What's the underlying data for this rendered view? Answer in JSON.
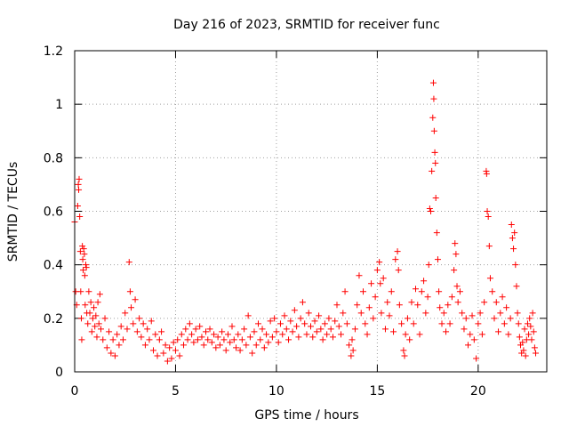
{
  "chart_data": {
    "type": "scatter",
    "title": "Day 216 of 2023, SRMTID for receiver func",
    "xlabel": "GPS time / hours",
    "ylabel": "SRMTID / TECUs",
    "xlim": [
      0,
      23.4
    ],
    "ylim": [
      0,
      1.2
    ],
    "x_ticks": [
      0,
      5,
      10,
      15,
      20
    ],
    "x_tick_labels": [
      "0",
      "5",
      "10",
      "15",
      "20"
    ],
    "y_ticks": [
      0,
      0.2,
      0.4,
      0.6,
      0.8,
      1.0,
      1.2
    ],
    "y_tick_labels": [
      "0",
      "0.2",
      "0.4",
      "0.6",
      "0.8",
      "1",
      "1.2"
    ],
    "grid": true,
    "marker": "+",
    "color": "#ff0000",
    "series": [
      {
        "name": "SRMTID",
        "points": [
          [
            0.0,
            0.56
          ],
          [
            0.05,
            0.3
          ],
          [
            0.1,
            0.25
          ],
          [
            0.15,
            0.62
          ],
          [
            0.18,
            0.7
          ],
          [
            0.2,
            0.68
          ],
          [
            0.22,
            0.72
          ],
          [
            0.25,
            0.58
          ],
          [
            0.28,
            0.45
          ],
          [
            0.3,
            0.3
          ],
          [
            0.33,
            0.2
          ],
          [
            0.35,
            0.12
          ],
          [
            0.38,
            0.47
          ],
          [
            0.4,
            0.42
          ],
          [
            0.42,
            0.38
          ],
          [
            0.45,
            0.46
          ],
          [
            0.48,
            0.44
          ],
          [
            0.5,
            0.36
          ],
          [
            0.52,
            0.25
          ],
          [
            0.55,
            0.4
          ],
          [
            0.58,
            0.39
          ],
          [
            0.6,
            0.22
          ],
          [
            0.65,
            0.18
          ],
          [
            0.7,
            0.3
          ],
          [
            0.75,
            0.22
          ],
          [
            0.8,
            0.26
          ],
          [
            0.85,
            0.15
          ],
          [
            0.9,
            0.2
          ],
          [
            0.95,
            0.24
          ],
          [
            1.0,
            0.17
          ],
          [
            1.05,
            0.21
          ],
          [
            1.1,
            0.13
          ],
          [
            1.15,
            0.26
          ],
          [
            1.2,
            0.18
          ],
          [
            1.25,
            0.29
          ],
          [
            1.3,
            0.16
          ],
          [
            1.4,
            0.12
          ],
          [
            1.5,
            0.2
          ],
          [
            1.6,
            0.09
          ],
          [
            1.7,
            0.15
          ],
          [
            1.8,
            0.07
          ],
          [
            1.9,
            0.12
          ],
          [
            2.0,
            0.06
          ],
          [
            2.1,
            0.14
          ],
          [
            2.2,
            0.1
          ],
          [
            2.3,
            0.17
          ],
          [
            2.4,
            0.12
          ],
          [
            2.5,
            0.22
          ],
          [
            2.6,
            0.16
          ],
          [
            2.7,
            0.41
          ],
          [
            2.75,
            0.3
          ],
          [
            2.8,
            0.24
          ],
          [
            2.9,
            0.18
          ],
          [
            3.0,
            0.27
          ],
          [
            3.1,
            0.15
          ],
          [
            3.2,
            0.2
          ],
          [
            3.3,
            0.13
          ],
          [
            3.4,
            0.18
          ],
          [
            3.5,
            0.1
          ],
          [
            3.6,
            0.16
          ],
          [
            3.7,
            0.12
          ],
          [
            3.8,
            0.19
          ],
          [
            3.9,
            0.08
          ],
          [
            4.0,
            0.14
          ],
          [
            4.1,
            0.06
          ],
          [
            4.2,
            0.12
          ],
          [
            4.3,
            0.15
          ],
          [
            4.4,
            0.07
          ],
          [
            4.5,
            0.1
          ],
          [
            4.6,
            0.04
          ],
          [
            4.7,
            0.09
          ],
          [
            4.8,
            0.05
          ],
          [
            4.9,
            0.11
          ],
          [
            5.0,
            0.08
          ],
          [
            5.1,
            0.12
          ],
          [
            5.2,
            0.06
          ],
          [
            5.3,
            0.14
          ],
          [
            5.4,
            0.1
          ],
          [
            5.5,
            0.16
          ],
          [
            5.6,
            0.12
          ],
          [
            5.7,
            0.18
          ],
          [
            5.8,
            0.14
          ],
          [
            5.9,
            0.11
          ],
          [
            6.0,
            0.16
          ],
          [
            6.1,
            0.12
          ],
          [
            6.2,
            0.17
          ],
          [
            6.3,
            0.13
          ],
          [
            6.4,
            0.1
          ],
          [
            6.5,
            0.15
          ],
          [
            6.6,
            0.12
          ],
          [
            6.7,
            0.16
          ],
          [
            6.8,
            0.11
          ],
          [
            6.9,
            0.14
          ],
          [
            7.0,
            0.09
          ],
          [
            7.1,
            0.13
          ],
          [
            7.2,
            0.1
          ],
          [
            7.3,
            0.15
          ],
          [
            7.4,
            0.12
          ],
          [
            7.5,
            0.08
          ],
          [
            7.6,
            0.14
          ],
          [
            7.7,
            0.11
          ],
          [
            7.8,
            0.17
          ],
          [
            7.9,
            0.12
          ],
          [
            8.0,
            0.09
          ],
          [
            8.1,
            0.14
          ],
          [
            8.2,
            0.08
          ],
          [
            8.3,
            0.12
          ],
          [
            8.4,
            0.16
          ],
          [
            8.5,
            0.1
          ],
          [
            8.6,
            0.21
          ],
          [
            8.7,
            0.13
          ],
          [
            8.8,
            0.07
          ],
          [
            8.9,
            0.15
          ],
          [
            9.0,
            0.1
          ],
          [
            9.1,
            0.18
          ],
          [
            9.2,
            0.12
          ],
          [
            9.3,
            0.16
          ],
          [
            9.4,
            0.09
          ],
          [
            9.5,
            0.14
          ],
          [
            9.6,
            0.11
          ],
          [
            9.7,
            0.19
          ],
          [
            9.8,
            0.13
          ],
          [
            9.9,
            0.2
          ],
          [
            10.0,
            0.15
          ],
          [
            10.1,
            0.11
          ],
          [
            10.2,
            0.18
          ],
          [
            10.3,
            0.14
          ],
          [
            10.4,
            0.21
          ],
          [
            10.5,
            0.16
          ],
          [
            10.6,
            0.12
          ],
          [
            10.7,
            0.19
          ],
          [
            10.8,
            0.15
          ],
          [
            10.9,
            0.23
          ],
          [
            11.0,
            0.17
          ],
          [
            11.1,
            0.13
          ],
          [
            11.2,
            0.2
          ],
          [
            11.3,
            0.26
          ],
          [
            11.4,
            0.18
          ],
          [
            11.5,
            0.14
          ],
          [
            11.6,
            0.22
          ],
          [
            11.7,
            0.17
          ],
          [
            11.8,
            0.13
          ],
          [
            11.9,
            0.19
          ],
          [
            12.0,
            0.15
          ],
          [
            12.1,
            0.21
          ],
          [
            12.2,
            0.16
          ],
          [
            12.3,
            0.12
          ],
          [
            12.4,
            0.18
          ],
          [
            12.5,
            0.14
          ],
          [
            12.6,
            0.2
          ],
          [
            12.7,
            0.16
          ],
          [
            12.8,
            0.13
          ],
          [
            12.9,
            0.19
          ],
          [
            13.0,
            0.25
          ],
          [
            13.1,
            0.17
          ],
          [
            13.2,
            0.14
          ],
          [
            13.3,
            0.22
          ],
          [
            13.4,
            0.3
          ],
          [
            13.5,
            0.18
          ],
          [
            13.6,
            0.1
          ],
          [
            13.7,
            0.06
          ],
          [
            13.75,
            0.12
          ],
          [
            13.8,
            0.08
          ],
          [
            13.9,
            0.16
          ],
          [
            14.0,
            0.25
          ],
          [
            14.1,
            0.36
          ],
          [
            14.2,
            0.22
          ],
          [
            14.3,
            0.3
          ],
          [
            14.4,
            0.18
          ],
          [
            14.5,
            0.14
          ],
          [
            14.6,
            0.24
          ],
          [
            14.7,
            0.33
          ],
          [
            14.8,
            0.2
          ],
          [
            14.9,
            0.28
          ],
          [
            15.0,
            0.38
          ],
          [
            15.1,
            0.41
          ],
          [
            15.15,
            0.33
          ],
          [
            15.2,
            0.22
          ],
          [
            15.3,
            0.35
          ],
          [
            15.4,
            0.16
          ],
          [
            15.5,
            0.26
          ],
          [
            15.6,
            0.21
          ],
          [
            15.7,
            0.3
          ],
          [
            15.8,
            0.15
          ],
          [
            15.9,
            0.42
          ],
          [
            16.0,
            0.45
          ],
          [
            16.05,
            0.38
          ],
          [
            16.1,
            0.25
          ],
          [
            16.2,
            0.18
          ],
          [
            16.3,
            0.08
          ],
          [
            16.35,
            0.06
          ],
          [
            16.4,
            0.14
          ],
          [
            16.5,
            0.2
          ],
          [
            16.6,
            0.12
          ],
          [
            16.7,
            0.26
          ],
          [
            16.8,
            0.18
          ],
          [
            16.9,
            0.31
          ],
          [
            17.0,
            0.25
          ],
          [
            17.1,
            0.14
          ],
          [
            17.2,
            0.3
          ],
          [
            17.3,
            0.34
          ],
          [
            17.4,
            0.22
          ],
          [
            17.5,
            0.28
          ],
          [
            17.55,
            0.4
          ],
          [
            17.6,
            0.61
          ],
          [
            17.65,
            0.6
          ],
          [
            17.7,
            0.75
          ],
          [
            17.75,
            0.95
          ],
          [
            17.78,
            1.08
          ],
          [
            17.8,
            1.02
          ],
          [
            17.82,
            0.9
          ],
          [
            17.85,
            0.82
          ],
          [
            17.88,
            0.78
          ],
          [
            17.9,
            0.65
          ],
          [
            17.95,
            0.52
          ],
          [
            18.0,
            0.42
          ],
          [
            18.05,
            0.3
          ],
          [
            18.1,
            0.24
          ],
          [
            18.2,
            0.18
          ],
          [
            18.3,
            0.22
          ],
          [
            18.4,
            0.15
          ],
          [
            18.5,
            0.25
          ],
          [
            18.6,
            0.18
          ],
          [
            18.7,
            0.28
          ],
          [
            18.8,
            0.38
          ],
          [
            18.85,
            0.48
          ],
          [
            18.9,
            0.44
          ],
          [
            18.95,
            0.32
          ],
          [
            19.0,
            0.26
          ],
          [
            19.1,
            0.3
          ],
          [
            19.2,
            0.22
          ],
          [
            19.3,
            0.16
          ],
          [
            19.4,
            0.2
          ],
          [
            19.5,
            0.1
          ],
          [
            19.6,
            0.14
          ],
          [
            19.7,
            0.21
          ],
          [
            19.8,
            0.12
          ],
          [
            19.9,
            0.05
          ],
          [
            20.0,
            0.18
          ],
          [
            20.1,
            0.22
          ],
          [
            20.2,
            0.14
          ],
          [
            20.3,
            0.26
          ],
          [
            20.4,
            0.75
          ],
          [
            20.42,
            0.74
          ],
          [
            20.45,
            0.6
          ],
          [
            20.5,
            0.58
          ],
          [
            20.55,
            0.47
          ],
          [
            20.6,
            0.35
          ],
          [
            20.7,
            0.3
          ],
          [
            20.8,
            0.2
          ],
          [
            20.9,
            0.26
          ],
          [
            21.0,
            0.15
          ],
          [
            21.1,
            0.22
          ],
          [
            21.2,
            0.28
          ],
          [
            21.3,
            0.18
          ],
          [
            21.4,
            0.24
          ],
          [
            21.5,
            0.14
          ],
          [
            21.6,
            0.2
          ],
          [
            21.65,
            0.55
          ],
          [
            21.7,
            0.5
          ],
          [
            21.75,
            0.46
          ],
          [
            21.8,
            0.52
          ],
          [
            21.85,
            0.4
          ],
          [
            21.9,
            0.32
          ],
          [
            21.95,
            0.22
          ],
          [
            22.0,
            0.18
          ],
          [
            22.05,
            0.13
          ],
          [
            22.1,
            0.1
          ],
          [
            22.15,
            0.07
          ],
          [
            22.2,
            0.11
          ],
          [
            22.25,
            0.08
          ],
          [
            22.3,
            0.16
          ],
          [
            22.35,
            0.06
          ],
          [
            22.4,
            0.12
          ],
          [
            22.45,
            0.18
          ],
          [
            22.5,
            0.14
          ],
          [
            22.55,
            0.2
          ],
          [
            22.6,
            0.17
          ],
          [
            22.65,
            0.12
          ],
          [
            22.7,
            0.22
          ],
          [
            22.75,
            0.15
          ],
          [
            22.8,
            0.09
          ],
          [
            22.85,
            0.07
          ]
        ]
      }
    ]
  }
}
